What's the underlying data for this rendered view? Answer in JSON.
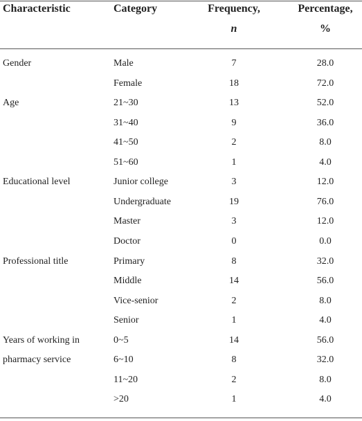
{
  "table": {
    "header": {
      "characteristic": "Characteristic",
      "category": "Category",
      "frequency": {
        "text": "Frequency,",
        "symbol": "n"
      },
      "percentage": {
        "text": "Percentage,",
        "symbol": "%"
      }
    },
    "groups": [
      {
        "characteristic": "Gender",
        "rows": [
          [
            "Male",
            "7",
            "28.0"
          ],
          [
            "Female",
            "18",
            "72.0"
          ]
        ]
      },
      {
        "characteristic": "Age",
        "rows": [
          [
            "21~30",
            "13",
            "52.0"
          ],
          [
            "31~40",
            "9",
            "36.0"
          ],
          [
            "41~50",
            "2",
            "8.0"
          ],
          [
            "51~60",
            "1",
            "4.0"
          ]
        ]
      },
      {
        "characteristic": "Educational level",
        "rows": [
          [
            "Junior college",
            "3",
            "12.0"
          ],
          [
            "Undergraduate",
            "19",
            "76.0"
          ],
          [
            "Master",
            "3",
            "12.0"
          ],
          [
            "Doctor",
            "0",
            "0.0"
          ]
        ]
      },
      {
        "characteristic": "Professional title",
        "rows": [
          [
            "Primary",
            "8",
            "32.0"
          ],
          [
            "Middle",
            "14",
            "56.0"
          ],
          [
            "Vice-senior",
            "2",
            "8.0"
          ],
          [
            "Senior",
            "1",
            "4.0"
          ]
        ]
      },
      {
        "characteristic": "Years of working in pharmacy service",
        "rows": [
          [
            "0~5",
            "14",
            "56.0"
          ],
          [
            "6~10",
            "8",
            "32.0"
          ],
          [
            "11~20",
            "2",
            "8.0"
          ],
          [
            ">20",
            "1",
            "4.0"
          ]
        ]
      }
    ]
  }
}
